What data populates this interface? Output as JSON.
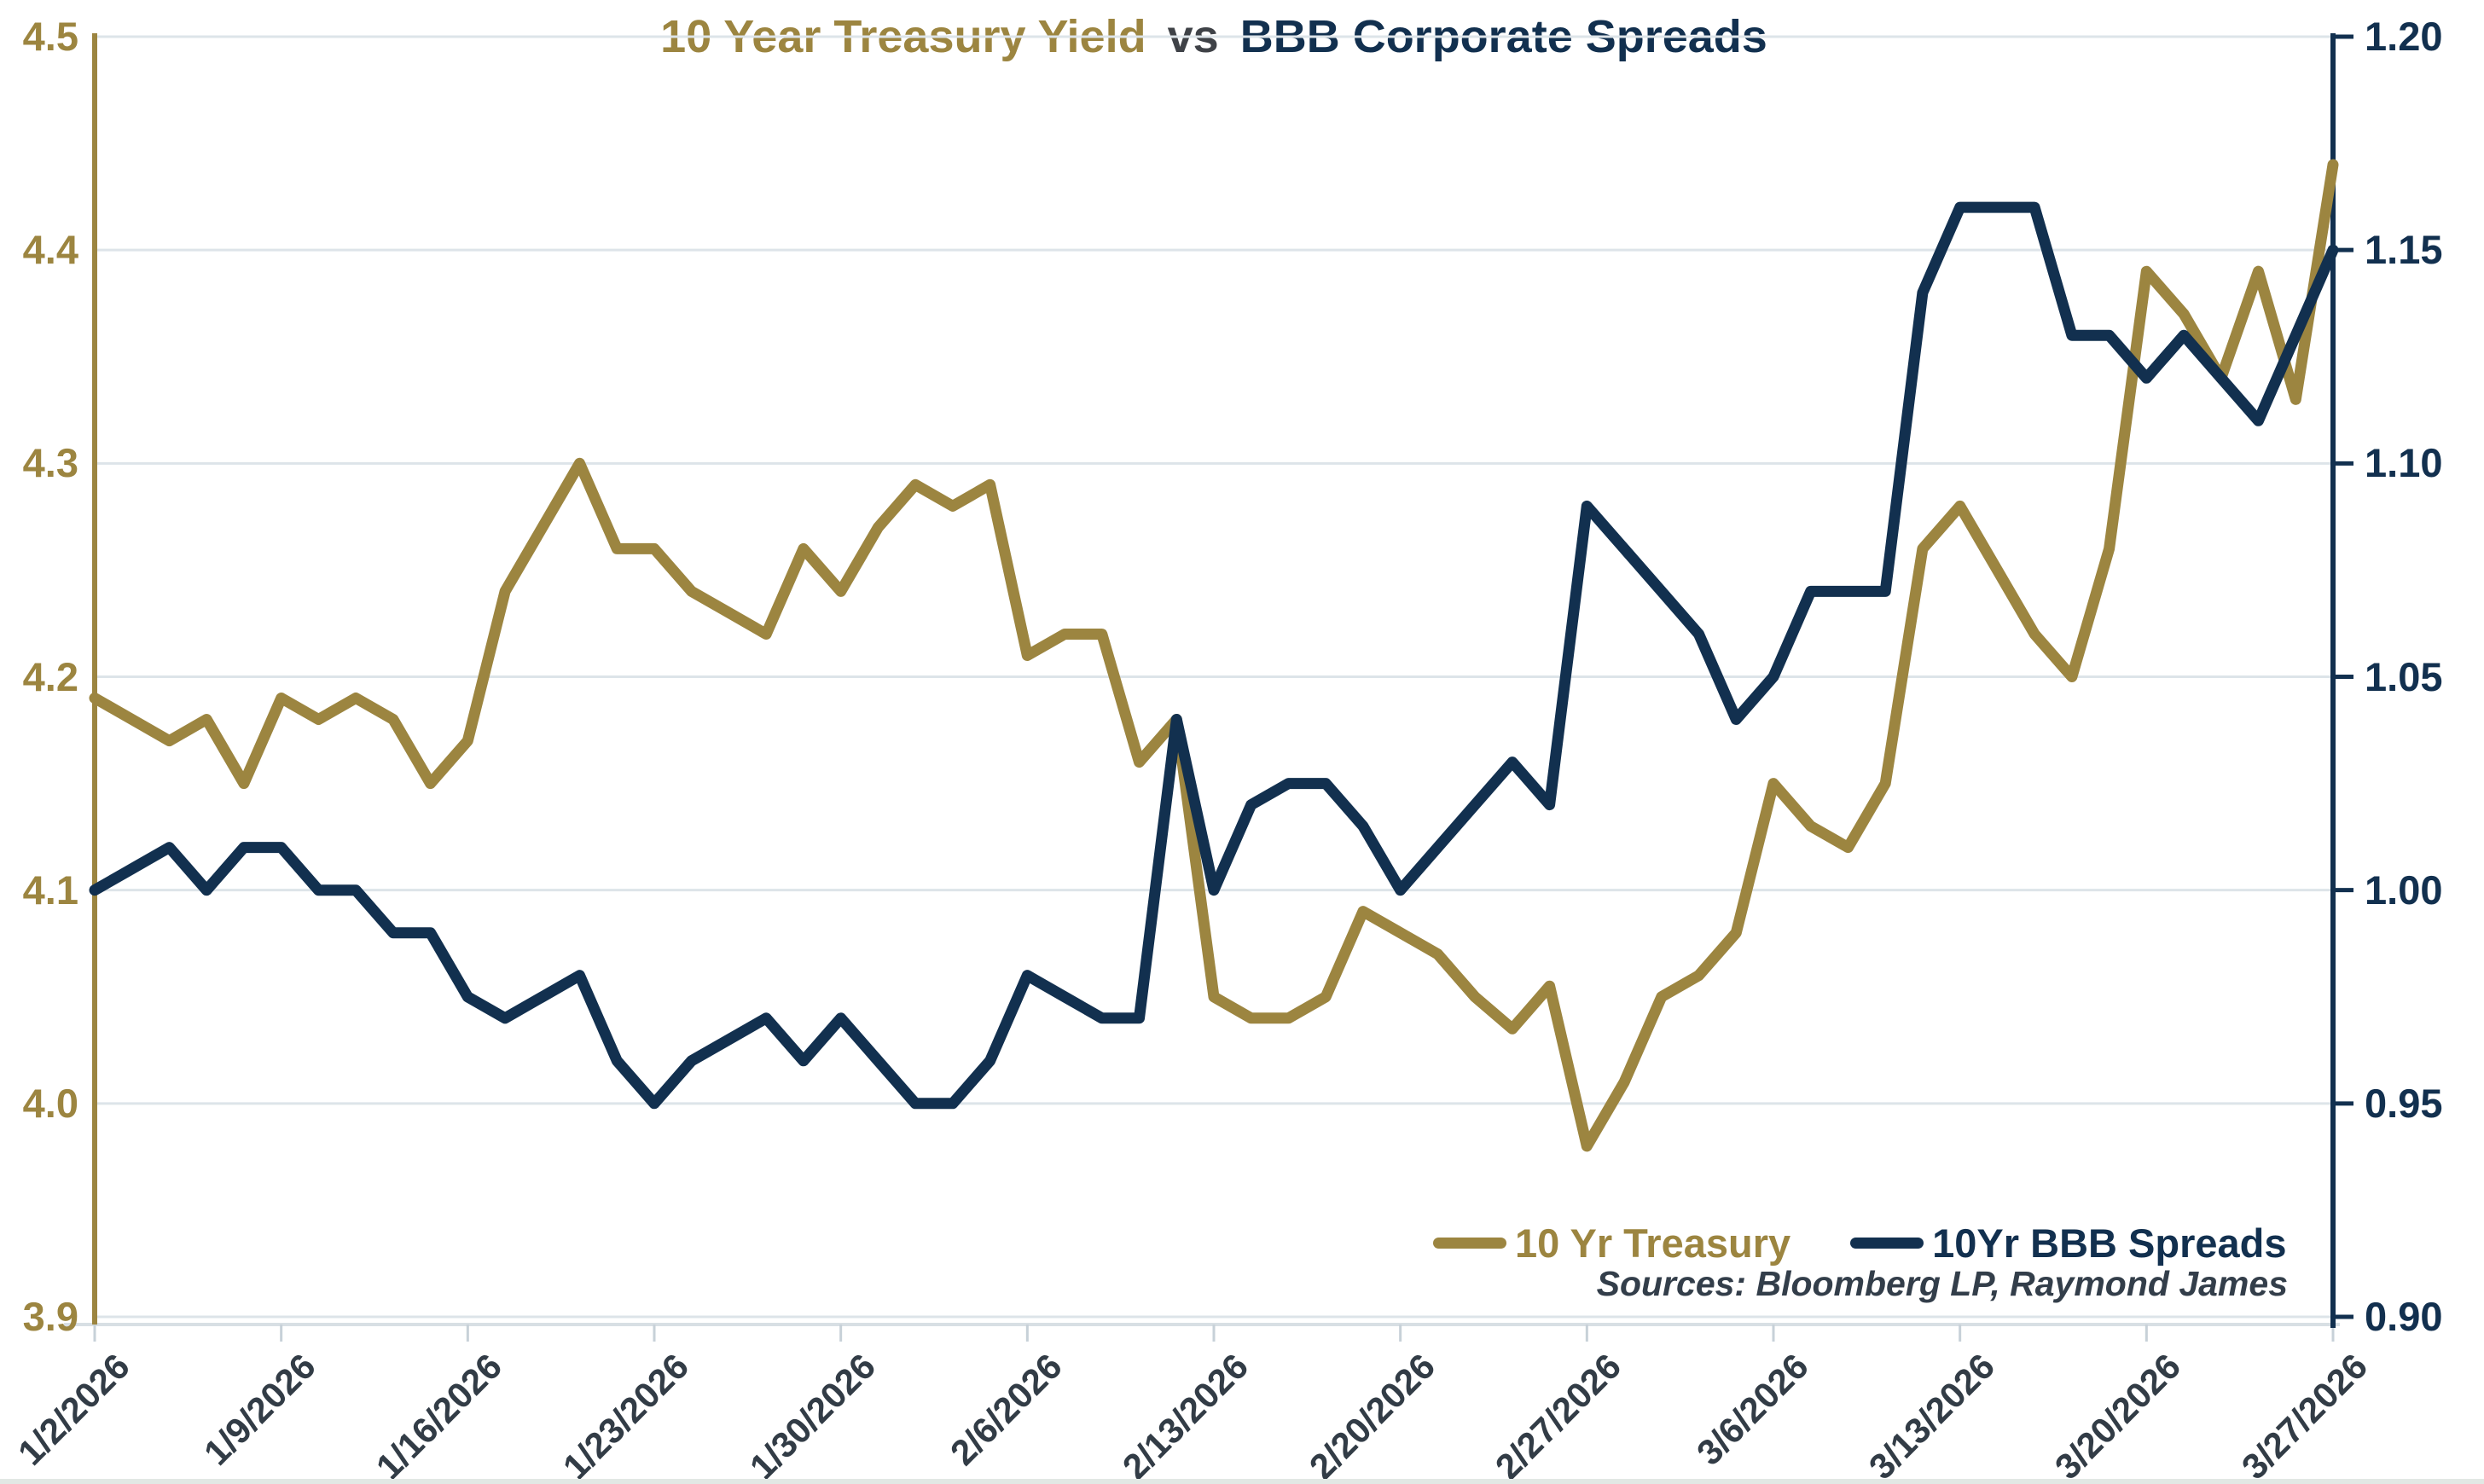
{
  "title": {
    "part1": "10 Year Treasury Yield",
    "part2": "vs",
    "part3": "BBB Corporate Spreads"
  },
  "legend": [
    {
      "label": "10 Yr Treasury",
      "color": "#9c8540"
    },
    {
      "label": "10Yr BBB Spreads",
      "color": "#12304f"
    }
  ],
  "source_note": "Sources: Bloomberg LP, Raymond James",
  "colors": {
    "treasury_line": "#9c8540",
    "spreads_line": "#12304f",
    "gridline": "#dde4e9",
    "x_axis_line": "#d8dfe4",
    "date_label": "#323c46"
  },
  "chart_data": {
    "type": "line",
    "title": "10 Year Treasury Yield vs BBB Corporate Spreads",
    "grid": "horizontal",
    "legend_position": "bottom-right-inside",
    "x_label_every": 5,
    "x_labels": [
      "1/2/2026",
      "1/9/2026",
      "1/16/2026",
      "1/23/2026",
      "1/30/2026",
      "2/6/2026",
      "2/13/2026",
      "2/20/2026",
      "2/27/2026",
      "3/6/2026",
      "3/13/2026",
      "3/20/2026",
      "3/27/2026"
    ],
    "categories": [
      "1/2/2026",
      "1/5/2026",
      "1/6/2026",
      "1/7/2026",
      "1/8/2026",
      "1/9/2026",
      "1/12/2026",
      "1/13/2026",
      "1/14/2026",
      "1/15/2026",
      "1/16/2026",
      "1/19/2026",
      "1/20/2026",
      "1/21/2026",
      "1/22/2026",
      "1/23/2026",
      "1/26/2026",
      "1/27/2026",
      "1/28/2026",
      "1/29/2026",
      "1/30/2026",
      "2/2/2026",
      "2/3/2026",
      "2/4/2026",
      "2/5/2026",
      "2/6/2026",
      "2/9/2026",
      "2/10/2026",
      "2/11/2026",
      "2/12/2026",
      "2/13/2026",
      "2/16/2026",
      "2/17/2026",
      "2/18/2026",
      "2/19/2026",
      "2/20/2026",
      "2/23/2026",
      "2/24/2026",
      "2/25/2026",
      "2/26/2026",
      "2/27/2026",
      "3/2/2026",
      "3/3/2026",
      "3/4/2026",
      "3/5/2026",
      "3/6/2026",
      "3/9/2026",
      "3/10/2026",
      "3/11/2026",
      "3/12/2026",
      "3/13/2026",
      "3/16/2026",
      "3/17/2026",
      "3/18/2026",
      "3/19/2026",
      "3/20/2026",
      "3/23/2026",
      "3/24/2026",
      "3/25/2026",
      "3/26/2026",
      "3/27/2026"
    ],
    "series": [
      {
        "name": "10 Yr Treasury",
        "axis": "left",
        "color": "#9c8540",
        "values": [
          4.19,
          4.18,
          4.17,
          4.18,
          4.15,
          4.19,
          4.18,
          4.19,
          4.18,
          4.15,
          4.17,
          4.24,
          4.27,
          4.3,
          4.26,
          4.26,
          4.24,
          4.23,
          4.22,
          4.26,
          4.24,
          4.27,
          4.29,
          4.28,
          4.29,
          4.21,
          4.22,
          4.22,
          4.16,
          4.18,
          4.05,
          4.04,
          4.04,
          4.05,
          4.09,
          4.08,
          4.07,
          4.05,
          4.035,
          4.055,
          3.98,
          4.01,
          4.05,
          4.06,
          4.08,
          4.15,
          4.13,
          4.12,
          4.15,
          4.26,
          4.28,
          4.25,
          4.22,
          4.2,
          4.26,
          4.39,
          4.37,
          4.34,
          4.39,
          4.33,
          4.44
        ]
      },
      {
        "name": "10Yr BBB Spreads",
        "axis": "right",
        "color": "#12304f",
        "values": [
          1.0,
          1.005,
          1.01,
          1.0,
          1.01,
          1.01,
          1.0,
          1.0,
          0.99,
          0.99,
          0.975,
          0.97,
          0.975,
          0.98,
          0.96,
          0.95,
          0.96,
          0.965,
          0.97,
          0.96,
          0.97,
          0.96,
          0.95,
          0.95,
          0.96,
          0.98,
          0.975,
          0.97,
          0.97,
          1.04,
          1.0,
          1.02,
          1.025,
          1.025,
          1.015,
          1.0,
          1.01,
          1.02,
          1.03,
          1.02,
          1.09,
          1.08,
          1.07,
          1.06,
          1.04,
          1.05,
          1.07,
          1.07,
          1.07,
          1.14,
          1.16,
          1.16,
          1.16,
          1.13,
          1.13,
          1.12,
          1.13,
          1.12,
          1.11,
          1.13,
          1.15
        ]
      }
    ],
    "y_axis_left": {
      "min": 3.9,
      "max": 4.5,
      "step": 0.1,
      "ticks": [
        "4.5",
        "4.4",
        "4.3",
        "4.2",
        "4.1",
        "4.0",
        "3.9"
      ]
    },
    "y_axis_right": {
      "min": 0.9,
      "max": 1.2,
      "step": 0.05,
      "ticks": [
        "1.20",
        "1.15",
        "1.10",
        "1.05",
        "1.00",
        "0.95",
        "0.90"
      ]
    }
  }
}
